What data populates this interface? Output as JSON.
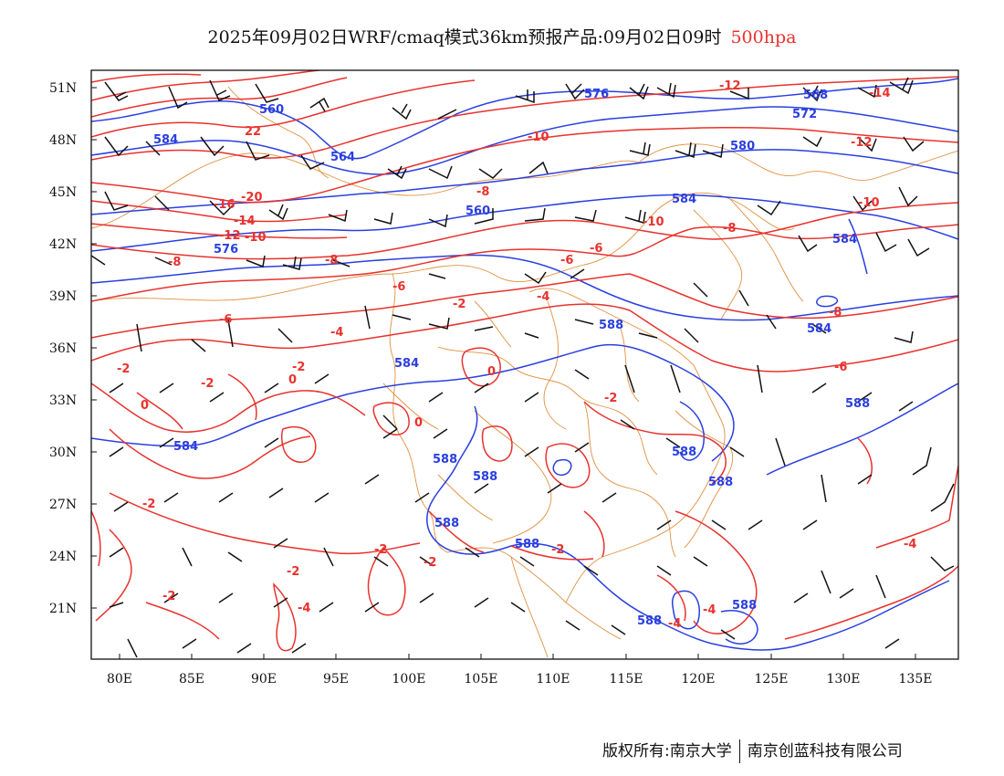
{
  "title": {
    "text": "2025年09月02日WRF/cmaq模式36km预报产品:09月02日09时",
    "level": "500hpa"
  },
  "axes": {
    "lat_labels": [
      "51N",
      "48N",
      "45N",
      "42N",
      "39N",
      "36N",
      "33N",
      "30N",
      "27N",
      "24N",
      "21N"
    ],
    "lon_labels": [
      "80E",
      "85E",
      "90E",
      "95E",
      "100E",
      "105E",
      "110E",
      "115E",
      "120E",
      "125E",
      "130E",
      "135E"
    ]
  },
  "contour_labels": {
    "geopotential": [
      "576",
      "560",
      "584",
      "564",
      "568",
      "572",
      "580",
      "584",
      "560",
      "576",
      "584",
      "588",
      "584",
      "584",
      "588",
      "584",
      "588",
      "588",
      "588",
      "588",
      "588",
      "588",
      "588",
      "588"
    ],
    "temperature": [
      "-12",
      "-14",
      "22",
      "-10",
      "-8",
      "-12",
      "-10",
      "-20",
      "-16",
      "-14",
      "-12",
      "-10",
      "-8",
      "-8",
      "-6",
      "-8",
      "-10",
      "-6",
      "-4",
      "-2",
      "-6",
      "-4",
      "-6",
      "-2",
      "-2",
      "0",
      "0",
      "0",
      "0",
      "-2",
      "-2",
      "-2",
      "-2",
      "-2",
      "-2",
      "-2",
      "-4",
      "-2",
      "-4",
      "-4",
      "-4",
      "-8",
      "-6"
    ]
  },
  "colors": {
    "geopotential_contour": "#2a3fe0",
    "temperature_contour": "#e8322e",
    "boundary": "#e09040",
    "wind_barb": "#111111",
    "level_label": "#e8322e"
  },
  "footer": {
    "copyright": "版权所有:南京大学",
    "company": "南京创蓝科技有限公司"
  }
}
